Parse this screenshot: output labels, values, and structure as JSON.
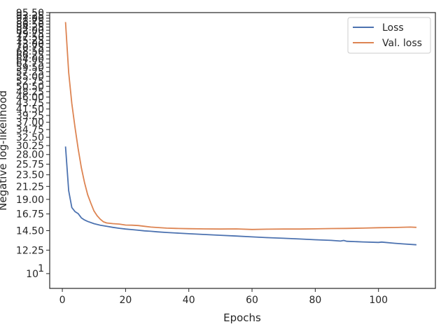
{
  "chart_data": {
    "type": "line",
    "xlabel": "Epochs",
    "ylabel": "Negative log-likelihood",
    "xlim": [
      -4,
      118
    ],
    "ylim": [
      8.8,
      95.5
    ],
    "yscale": "log",
    "xticks": [
      0,
      20,
      40,
      60,
      80,
      100
    ],
    "yticks": [
      {
        "value": 10,
        "label": "10",
        "exp": "1"
      },
      {
        "value": 12.25,
        "label": "12.25"
      },
      {
        "value": 14.5,
        "label": "14.50"
      },
      {
        "value": 16.75,
        "label": "16.75"
      },
      {
        "value": 19,
        "label": "19.00"
      },
      {
        "value": 21.25,
        "label": "21.25"
      },
      {
        "value": 23.5,
        "label": "23.50"
      },
      {
        "value": 25.75,
        "label": "25.75"
      },
      {
        "value": 28,
        "label": "28.00"
      },
      {
        "value": 30.25,
        "label": "30.25"
      },
      {
        "value": 32.5,
        "label": "32.50"
      },
      {
        "value": 34.75,
        "label": "34.75"
      },
      {
        "value": 37,
        "label": "37.00"
      },
      {
        "value": 39.25,
        "label": "39.25"
      },
      {
        "value": 41.5,
        "label": "41.50"
      },
      {
        "value": 43.75,
        "label": "43.75"
      },
      {
        "value": 46,
        "label": "46.00"
      },
      {
        "value": 48.25,
        "label": "48.25"
      },
      {
        "value": 50.5,
        "label": "50.50"
      },
      {
        "value": 52.75,
        "label": "52.75"
      },
      {
        "value": 55,
        "label": "55.00"
      },
      {
        "value": 57.25,
        "label": "57.25"
      },
      {
        "value": 59.5,
        "label": "59.50"
      },
      {
        "value": 61.75,
        "label": "61.75"
      },
      {
        "value": 64,
        "label": "64.00"
      },
      {
        "value": 66.25,
        "label": "66.25"
      },
      {
        "value": 68.5,
        "label": "68.50"
      },
      {
        "value": 70.75,
        "label": "70.75"
      },
      {
        "value": 73,
        "label": "73.00"
      },
      {
        "value": 75.25,
        "label": "75.25"
      },
      {
        "value": 77.5,
        "label": "77.50"
      },
      {
        "value": 79.75,
        "label": "79.75"
      },
      {
        "value": 82,
        "label": "82.00"
      },
      {
        "value": 84.25,
        "label": "84.25"
      },
      {
        "value": 86.5,
        "label": "86.50"
      },
      {
        "value": 88.75,
        "label": "88.75"
      },
      {
        "value": 91,
        "label": "91.00"
      },
      {
        "value": 93.25,
        "label": "93.25"
      },
      {
        "value": 95.5,
        "label": "95.50"
      }
    ],
    "grid": false,
    "legend": "top-right",
    "series": [
      {
        "name": "Loss",
        "color": "#4c72b0",
        "x": [
          1,
          2,
          3,
          4,
          5,
          6,
          7,
          8,
          10,
          12,
          14,
          16,
          18,
          20,
          22,
          24,
          26,
          28,
          30,
          33,
          36,
          40,
          45,
          50,
          55,
          60,
          65,
          70,
          75,
          80,
          85,
          88,
          89,
          90,
          95,
          100,
          101,
          105,
          108,
          112
        ],
        "y": [
          30.0,
          20.5,
          17.7,
          17.1,
          16.8,
          16.2,
          15.9,
          15.7,
          15.4,
          15.2,
          15.05,
          14.92,
          14.8,
          14.7,
          14.63,
          14.55,
          14.47,
          14.42,
          14.35,
          14.27,
          14.2,
          14.12,
          14.02,
          13.93,
          13.84,
          13.74,
          13.65,
          13.57,
          13.49,
          13.4,
          13.33,
          13.25,
          13.32,
          13.22,
          13.15,
          13.1,
          13.14,
          13.0,
          12.92,
          12.83
        ]
      },
      {
        "name": "Val. loss",
        "color": "#dd8452",
        "x": [
          1,
          2,
          3,
          4,
          5,
          6,
          7,
          8,
          9,
          10,
          11,
          12,
          13,
          14,
          16,
          18,
          20,
          22,
          24,
          26,
          28,
          30,
          33,
          36,
          40,
          45,
          50,
          55,
          60,
          65,
          70,
          75,
          80,
          85,
          90,
          95,
          100,
          105,
          110,
          112
        ],
        "y": [
          88.0,
          57.0,
          43.5,
          35.5,
          29.5,
          25.0,
          22.0,
          19.8,
          18.4,
          17.2,
          16.5,
          16.0,
          15.65,
          15.5,
          15.4,
          15.35,
          15.22,
          15.2,
          15.15,
          15.05,
          14.95,
          14.9,
          14.82,
          14.78,
          14.75,
          14.72,
          14.7,
          14.72,
          14.65,
          14.68,
          14.7,
          14.7,
          14.73,
          14.76,
          14.78,
          14.82,
          14.87,
          14.9,
          14.95,
          14.92
        ]
      }
    ]
  }
}
